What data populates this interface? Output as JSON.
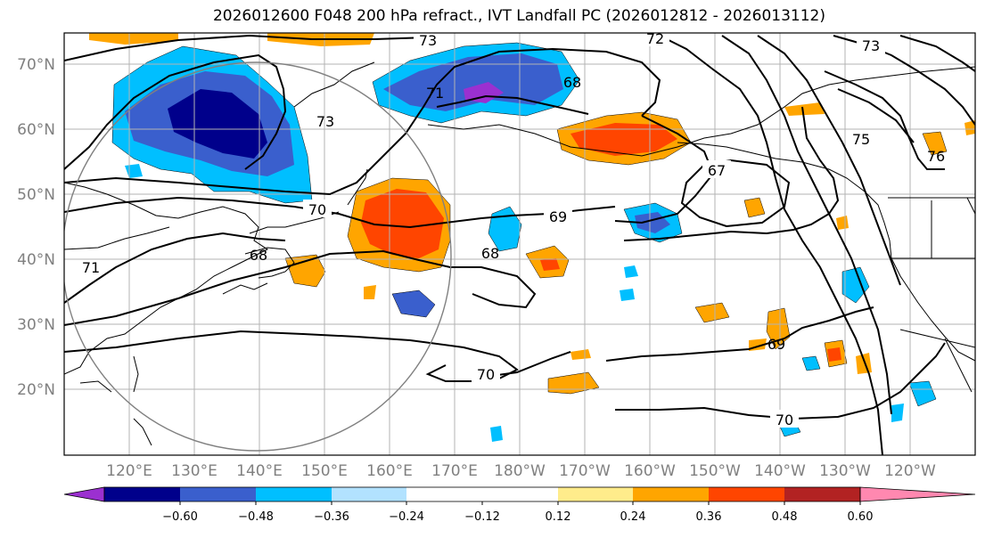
{
  "title": "2026012600 F048 200 hPa refract., IVT Landfall PC (2026012812 - 2026013112)",
  "lat_labels": [
    "70°N",
    "60°N",
    "50°N",
    "40°N",
    "30°N",
    "20°N"
  ],
  "lon_labels": [
    "120°E",
    "130°E",
    "140°E",
    "150°E",
    "160°E",
    "170°E",
    "180°W",
    "170°W",
    "160°W",
    "150°W",
    "140°W",
    "130°W",
    "120°W"
  ],
  "contour_labels": [
    "73",
    "72",
    "73",
    "71",
    "68",
    "73",
    "67",
    "76",
    "75",
    "70",
    "69",
    "68",
    "68",
    "71",
    "70",
    "69",
    "70"
  ],
  "colorbar": {
    "ticks": [
      "−0.60",
      "−0.48",
      "−0.36",
      "−0.24",
      "−0.12",
      "0.12",
      "0.24",
      "0.36",
      "0.48",
      "0.60"
    ],
    "colors": [
      "#9b30d0",
      "#00008b",
      "#3a5fcd",
      "#00bfff",
      "#b2e2ff",
      "#ffffff",
      "#ffec8b",
      "#ffa500",
      "#ff4500",
      "#b22222",
      "#ff88b0"
    ]
  }
}
